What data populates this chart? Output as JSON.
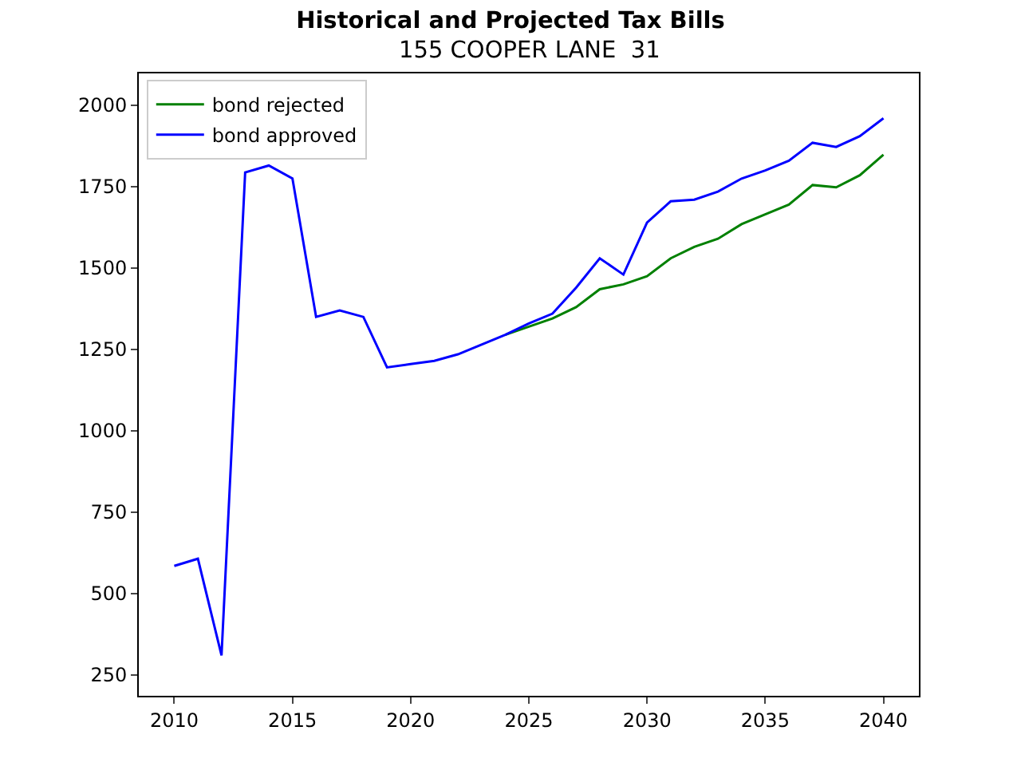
{
  "chart_data": {
    "type": "line",
    "title": "Historical and Projected Tax Bills",
    "subtitle": "155 COOPER LANE  31",
    "x": [
      2010,
      2011,
      2012,
      2013,
      2014,
      2015,
      2016,
      2017,
      2018,
      2019,
      2020,
      2021,
      2022,
      2023,
      2024,
      2025,
      2026,
      2027,
      2028,
      2029,
      2030,
      2031,
      2032,
      2033,
      2034,
      2035,
      2036,
      2037,
      2038,
      2039,
      2040
    ],
    "series": [
      {
        "name": "bond rejected",
        "color": "#008000",
        "values": [
          null,
          null,
          null,
          null,
          null,
          null,
          null,
          null,
          null,
          null,
          null,
          null,
          null,
          null,
          1295,
          1320,
          1345,
          1380,
          1435,
          1450,
          1475,
          1530,
          1565,
          1590,
          1635,
          1665,
          1695,
          1755,
          1748,
          1785,
          1848
        ]
      },
      {
        "name": "bond approved",
        "color": "#0000ff",
        "values": [
          585,
          607,
          310,
          1794,
          1815,
          1775,
          1350,
          1370,
          1350,
          1195,
          1205,
          1215,
          1235,
          1265,
          1295,
          1330,
          1360,
          1440,
          1530,
          1480,
          1640,
          1705,
          1710,
          1735,
          1775,
          1800,
          1830,
          1885,
          1872,
          1905,
          1960
        ]
      }
    ],
    "xlim": [
      2008.5,
      2041.5
    ],
    "xticks": [
      2010,
      2015,
      2020,
      2025,
      2030,
      2035,
      2040
    ],
    "ylim": [
      186,
      2098
    ],
    "yticks": [
      250,
      500,
      750,
      1000,
      1250,
      1500,
      1750,
      2000
    ],
    "grid": false,
    "legend": "top left",
    "marker": "none",
    "line_style": "solid"
  }
}
